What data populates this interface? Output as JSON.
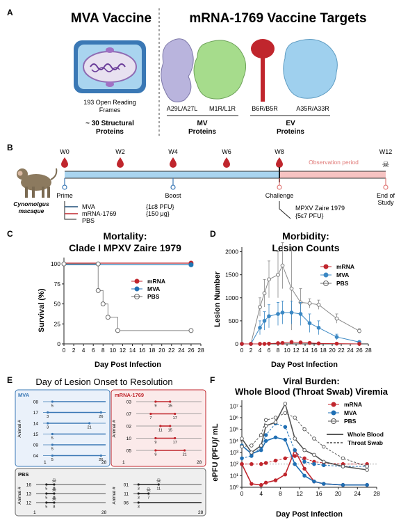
{
  "panelA": {
    "letter": "A",
    "mva_title": "MVA Vaccine",
    "mrna_title": "mRNA-1769 Vaccine Targets",
    "orf_line1": "193 Open Reading",
    "orf_line2": "Frames",
    "struct_line1": "~ 30 Structural",
    "struct_line2": "Proteins",
    "protein_labels": [
      "A29L/A27L",
      "M1R/L1R",
      "B6R/B5R",
      "A35R/A33R"
    ],
    "mv_line1": "MV",
    "mv_line2": "Proteins",
    "ev_line1": "EV",
    "ev_line2": "Proteins",
    "colors": {
      "a29": "#b9b4dd",
      "m1r": "#a6dc8c",
      "b6r": "#c0262d",
      "a35": "#9fd0ee"
    }
  },
  "panelB": {
    "letter": "B",
    "weeks": [
      "W0",
      "W2",
      "W4",
      "W6",
      "W8",
      "W12"
    ],
    "obs_label": "Observation period",
    "species_line1": "Cynomolgus",
    "species_line2": "macaque",
    "events": [
      "Prime",
      "Boost",
      "Challenge"
    ],
    "end_line1": "End of",
    "end_line2": "Study",
    "vaccines": [
      {
        "name": "MVA",
        "dose": "{1ε8 PFU}",
        "color": "#1f4e79"
      },
      {
        "name": "mRNA-1769",
        "dose": "{150 μg}",
        "color": "#c0262d"
      },
      {
        "name": "PBS",
        "dose": "",
        "color": "#777777"
      }
    ],
    "challenge_line1": "MPXV Zaire 1979",
    "challenge_line2": "{5ε7 PFU}"
  },
  "panelC": {
    "letter": "C",
    "title_line1": "Mortality:",
    "title_line2": "Clade I MPXV Zaire 1979",
    "ylabel": "Survival (%)",
    "xlabel": "Day Post Infection",
    "yticks": [
      "0",
      "25",
      "50",
      "75",
      "100"
    ],
    "xticks": [
      "0",
      "2",
      "4",
      "6",
      "8",
      "10",
      "12",
      "14",
      "16",
      "18",
      "20",
      "22",
      "24",
      "26",
      "28"
    ],
    "legend": [
      "mRNA",
      "MVA",
      "PBS"
    ]
  },
  "panelD": {
    "letter": "D",
    "title_line1": "Morbidity:",
    "title_line2": "Lesion Counts",
    "ylabel": "Lesion Number",
    "xlabel": "Day Post Infection",
    "yticks": [
      "0",
      "500",
      "1000",
      "1500",
      "2000"
    ],
    "xticks": [
      "0",
      "2",
      "4",
      "6",
      "8",
      "10",
      "12",
      "14",
      "16",
      "18",
      "20",
      "22",
      "24",
      "26",
      "28"
    ],
    "legend": [
      "mRNA",
      "MVA",
      "PBS"
    ]
  },
  "panelE": {
    "letter": "E",
    "title": "Day of Lesion Onset to Resolution",
    "mva_label": "MVA",
    "mrna_label": "mRNA-1769",
    "pbs_label": "PBS",
    "axis_label": "Animal #",
    "mva_animals": [
      {
        "id": "08",
        "start": "5",
        "end": ""
      },
      {
        "id": "17",
        "start": "3",
        "end": "26"
      },
      {
        "id": "14",
        "start": "3",
        "end": "21"
      },
      {
        "id": "15",
        "start": "5",
        "end": ""
      },
      {
        "id": "09",
        "start": "5",
        "end": ""
      },
      {
        "id": "04",
        "start": "5",
        "end": "26"
      }
    ],
    "mrna_animals": [
      {
        "id": "03",
        "start": "9",
        "end": "15"
      },
      {
        "id": "07",
        "start": "7",
        "end": "17"
      },
      {
        "id": "02",
        "start": "11",
        "end": "15"
      },
      {
        "id": "10",
        "start": "9",
        "end": "17"
      },
      {
        "id": "05",
        "start": "9",
        "end": "21"
      }
    ],
    "pbs_left": [
      {
        "id": "16",
        "start": "5",
        "end": "8"
      },
      {
        "id": "13",
        "start": "5",
        "end": "8"
      },
      {
        "id": "12",
        "start": "5",
        "end": "8"
      }
    ],
    "pbs_right": [
      {
        "id": "01",
        "start": "3",
        "end": "11"
      },
      {
        "id": "11",
        "start": "3",
        "end": "7"
      },
      {
        "id": "06",
        "start": "3",
        "end": ""
      }
    ],
    "axis_min": "1",
    "axis_max": "28"
  },
  "panelF": {
    "letter": "F",
    "title_line1": "Viral Burden:",
    "title_line2": "Whole Blood (Throat Swab) Viremia",
    "ylabel": "ePFU (PFU)/ mL",
    "xlabel": "Day Post Infection",
    "yticks": [
      "10⁰",
      "10¹",
      "10²",
      "10³",
      "10⁴",
      "10⁵",
      "10⁶",
      "10⁷"
    ],
    "xticks": [
      "0",
      "4",
      "8",
      "12",
      "16",
      "20",
      "24",
      "28"
    ],
    "legend": [
      "mRNA",
      "MVA",
      "PBS"
    ],
    "line_legend": [
      "Whole Blood",
      "Throat Swab"
    ]
  },
  "chart_data": [
    {
      "type": "line",
      "title": "Mortality: Clade I MPXV Zaire 1979",
      "xlabel": "Day Post Infection",
      "ylabel": "Survival (%)",
      "xlim": [
        0,
        28
      ],
      "ylim": [
        0,
        100
      ],
      "series": [
        {
          "name": "mRNA",
          "color": "#c0262d",
          "x": [
            0,
            26
          ],
          "y": [
            100,
            100
          ],
          "step": true
        },
        {
          "name": "MVA",
          "color": "#1f77b4",
          "x": [
            0,
            26
          ],
          "y": [
            100,
            100
          ],
          "step": true
        },
        {
          "name": "PBS",
          "color": "#888888",
          "x": [
            0,
            7,
            7,
            8,
            9,
            11,
            26
          ],
          "y": [
            100,
            100,
            66.7,
            50,
            33.3,
            16.7,
            16.7
          ],
          "step": true
        }
      ]
    },
    {
      "type": "line",
      "title": "Morbidity: Lesion Counts",
      "xlabel": "Day Post Infection",
      "ylabel": "Lesion Number",
      "xlim": [
        0,
        28
      ],
      "ylim": [
        0,
        2000
      ],
      "series": [
        {
          "name": "mRNA",
          "color": "#c0262d",
          "x": [
            0,
            2,
            4,
            5,
            6,
            8,
            9,
            11,
            13,
            15,
            17,
            21,
            26
          ],
          "y": [
            0,
            0,
            0,
            0,
            5,
            15,
            20,
            40,
            30,
            20,
            10,
            5,
            0
          ],
          "err": [
            0,
            0,
            0,
            0,
            5,
            10,
            10,
            20,
            20,
            10,
            5,
            5,
            0
          ]
        },
        {
          "name": "MVA",
          "color": "#3b88c4",
          "x": [
            0,
            2,
            4,
            5,
            6,
            8,
            9,
            11,
            13,
            15,
            17,
            21,
            26
          ],
          "y": [
            0,
            0,
            350,
            500,
            600,
            650,
            680,
            680,
            650,
            450,
            350,
            150,
            40
          ],
          "err": [
            0,
            0,
            150,
            200,
            250,
            250,
            250,
            250,
            250,
            200,
            150,
            60,
            20
          ]
        },
        {
          "name": "PBS",
          "color": "#888888",
          "x": [
            0,
            2,
            4,
            5,
            6,
            8,
            9,
            11,
            13,
            15,
            17,
            21,
            26
          ],
          "y": [
            0,
            0,
            800,
            1100,
            1400,
            1500,
            1700,
            1200,
            900,
            880,
            850,
            550,
            280
          ],
          "err": [
            0,
            0,
            200,
            300,
            400,
            500,
            500,
            900,
            300,
            100,
            100,
            100,
            50
          ]
        }
      ]
    },
    {
      "type": "line",
      "title": "Viral Burden: Whole Blood (Throat Swab) Viremia",
      "xlabel": "Day Post Infection",
      "ylabel": "ePFU (PFU)/ mL",
      "yscale": "log",
      "xlim": [
        0,
        28
      ],
      "ylim": [
        0,
        7.5
      ],
      "series": [
        {
          "name": "mRNA Whole Blood",
          "color": "#c0262d",
          "style": "solid",
          "x": [
            0,
            2,
            4,
            5,
            7,
            9,
            11,
            13,
            15,
            17,
            21,
            26
          ],
          "y": [
            2.0,
            0.3,
            0.2,
            0.4,
            0.6,
            1.1,
            3.2,
            1.6,
            0.5,
            0.3,
            0.2,
            0.2
          ]
        },
        {
          "name": "mRNA Throat Swab",
          "color": "#c0262d",
          "style": "dashed",
          "x": [
            0,
            2,
            4,
            5,
            7,
            9,
            11,
            13,
            15,
            17,
            21,
            26
          ],
          "y": [
            2.0,
            2.0,
            2.0,
            2.1,
            2.3,
            2.5,
            2.7,
            2.5,
            2.2,
            2.1,
            2.0,
            2.0
          ]
        },
        {
          "name": "MVA Whole Blood",
          "color": "#1f6fb4",
          "style": "solid",
          "x": [
            0,
            2,
            4,
            5,
            7,
            9,
            11,
            13,
            15,
            17,
            21,
            26
          ],
          "y": [
            3.6,
            2.9,
            3.2,
            4.0,
            4.3,
            4.1,
            2.0,
            1.0,
            0.5,
            0.3,
            0.2,
            0.2
          ]
        },
        {
          "name": "MVA Throat Swab",
          "color": "#1f6fb4",
          "style": "dashed",
          "x": [
            0,
            2,
            4,
            5,
            7,
            9,
            11,
            13,
            15,
            17,
            21,
            26
          ],
          "y": [
            2.5,
            2.7,
            3.5,
            4.5,
            5.5,
            5.2,
            3.2,
            2.2,
            2.0,
            1.9,
            1.8,
            1.8
          ]
        },
        {
          "name": "PBS Whole Blood",
          "color": "#555555",
          "style": "solid",
          "x": [
            0,
            2,
            4,
            5,
            7,
            9,
            11,
            13,
            15,
            17,
            21,
            26
          ],
          "y": [
            4.2,
            3.0,
            3.6,
            5.3,
            5.6,
            7.2,
            4.2,
            3.2,
            2.8,
            2.2,
            1.8,
            1.5
          ]
        },
        {
          "name": "PBS Throat Swab",
          "color": "#555555",
          "style": "dashed",
          "x": [
            0,
            2,
            4,
            5,
            7,
            9,
            11,
            13,
            15,
            17,
            21,
            26
          ],
          "y": [
            3.5,
            3.6,
            4.5,
            5.8,
            6.0,
            6.4,
            6.0,
            5.0,
            4.2,
            3.5,
            2.5,
            1.8
          ]
        }
      ]
    }
  ]
}
